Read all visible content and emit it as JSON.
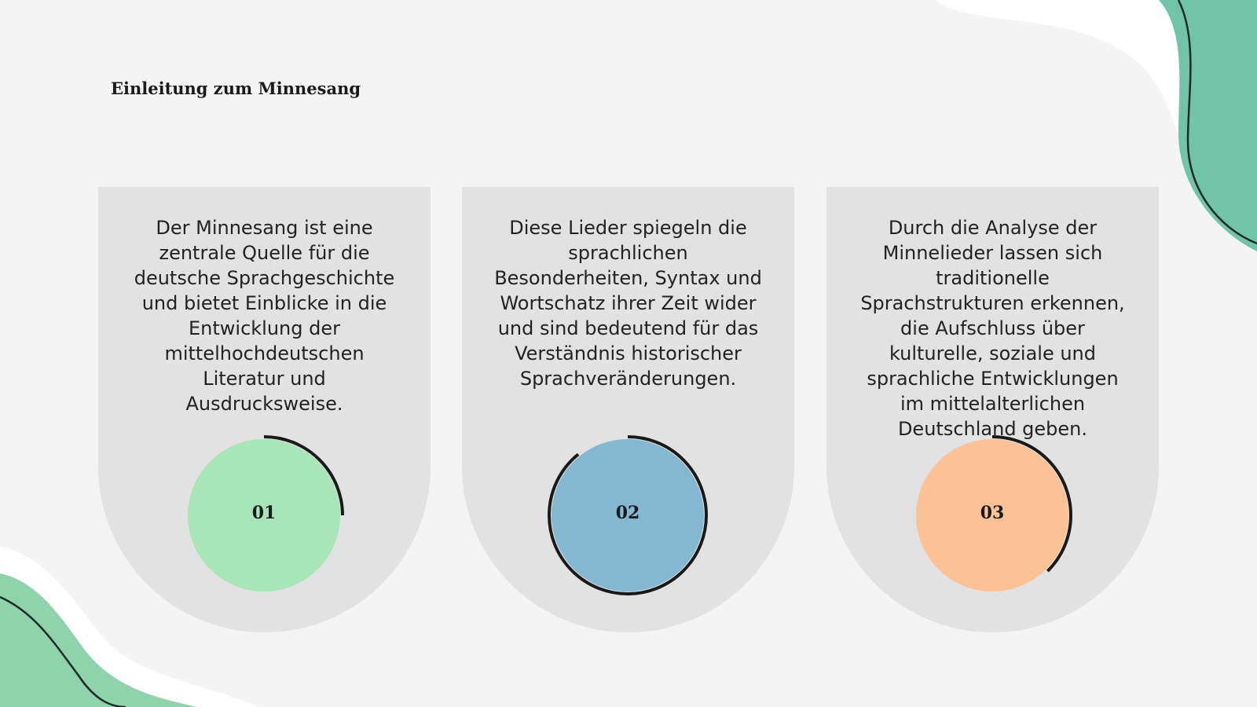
{
  "header": {
    "title": "Einleitung zum Minnesang"
  },
  "cards": [
    {
      "number": "01",
      "text": "Der Minnesang ist eine zentrale Quelle für die deutsche Sprachgeschichte und bietet Einblicke in die Entwicklung der mittelhochdeutschen Literatur und Ausdrucksweise."
    },
    {
      "number": "02",
      "text": "Diese Lieder spiegeln die sprachlichen Besonderheiten, Syntax und Wortschatz ihrer Zeit wider und sind bedeutend für das Verständnis historischer Sprachveränderungen."
    },
    {
      "number": "03",
      "text": "Durch die Analyse der Minnelieder lassen sich traditionelle Sprachstrukturen erkennen, die Aufschluss über kulturelle, soziale und sprachliche Entwicklungen im mittelalterlichen Deutschland geben."
    }
  ]
}
